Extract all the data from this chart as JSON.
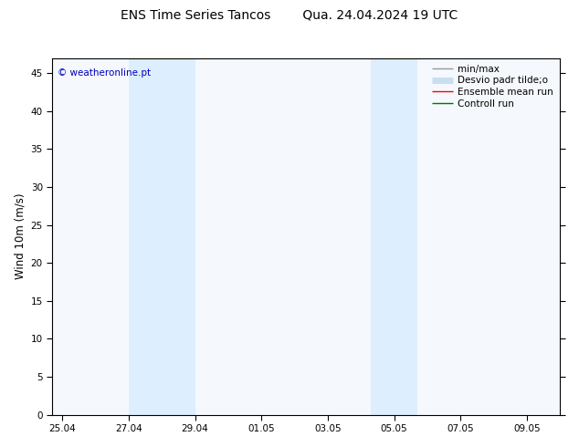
{
  "title": "ENS Time Series Tancos        Qua. 24.04.2024 19 UTC",
  "ylabel": "Wind 10m (m/s)",
  "xlabel_ticks": [
    "25.04",
    "27.04",
    "29.04",
    "01.05",
    "03.05",
    "05.05",
    "07.05",
    "09.05"
  ],
  "tick_positions": [
    0,
    2,
    4,
    6,
    8,
    10,
    12,
    14
  ],
  "yticks": [
    0,
    5,
    10,
    15,
    20,
    25,
    30,
    35,
    40,
    45
  ],
  "ymax": 47,
  "ymin": 0,
  "xlim_min": -0.3,
  "xlim_max": 15.0,
  "bg_color": "#ffffff",
  "plot_bg_color": "#f5f8fc",
  "shaded_color": "#ddeeff",
  "shaded_regions": [
    {
      "x_start": 2.0,
      "x_end": 4.0
    },
    {
      "x_start": 9.3,
      "x_end": 10.7
    }
  ],
  "watermark_text": "© weatheronline.pt",
  "watermark_color": "#0000bb",
  "legend_labels": [
    "min/max",
    "Desvio padr tilde;o",
    "Ensemble mean run",
    "Controll run"
  ],
  "legend_colors": [
    "#999999",
    "#c8dff0",
    "#ff0000",
    "#007700"
  ],
  "legend_lws": [
    1.0,
    5,
    1.0,
    1.0
  ],
  "title_fontsize": 10,
  "tick_fontsize": 7.5,
  "label_fontsize": 8.5,
  "watermark_fontsize": 7.5,
  "legend_fontsize": 7.5
}
